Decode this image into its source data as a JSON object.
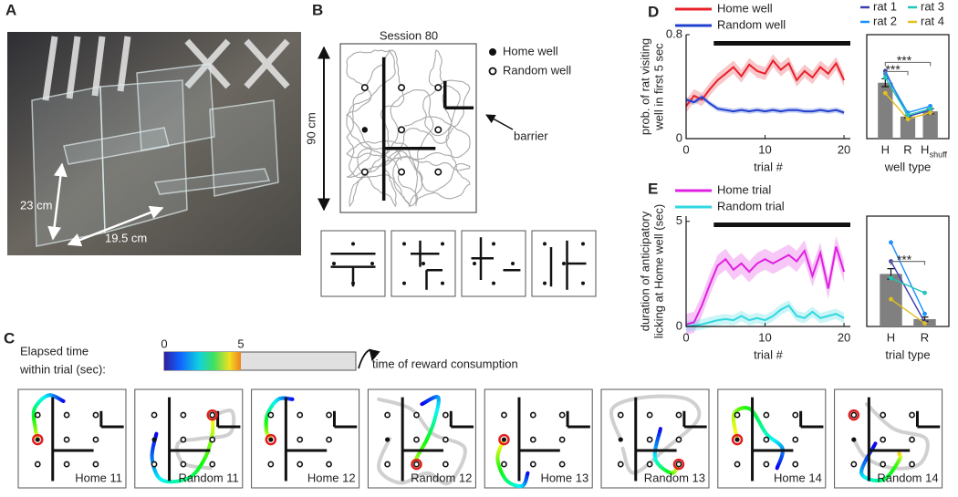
{
  "panel_labels": [
    "A",
    "B",
    "C",
    "D",
    "E"
  ],
  "panel_a": {
    "height_label": "23 cm",
    "width_label": "19.5 cm"
  },
  "panel_b": {
    "title": "Session 80",
    "legend": [
      "Home well",
      "Random well"
    ],
    "barrier_label": "barrier",
    "size_label": "90 cm"
  },
  "panel_c": {
    "colorbar_label": [
      "Elapsed time",
      "within trial (sec):"
    ],
    "colorbar_ticks": [
      0,
      5
    ],
    "colorbar_lim": [
      0,
      12.5
    ],
    "reward_label": "time of reward consumption",
    "trials": [
      "Home 11",
      "Random 11",
      "Home 12",
      "Random 12",
      "Home 13",
      "Random 13",
      "Home 14",
      "Random 14"
    ]
  },
  "chart_data": [
    {
      "type": "line",
      "xlabel": "trial #",
      "ylabel": [
        "prob. of rat visiting",
        "well in first 5 sec"
      ],
      "x": [
        0,
        1,
        2,
        3,
        4,
        5,
        6,
        7,
        8,
        9,
        10,
        11,
        12,
        13,
        14,
        15,
        16,
        17,
        18,
        19,
        20
      ],
      "series": [
        {
          "name": "Home well",
          "color": "#e8202a",
          "error": 0.05,
          "values": [
            0.25,
            0.33,
            0.3,
            0.38,
            0.45,
            0.5,
            0.55,
            0.48,
            0.57,
            0.52,
            0.5,
            0.6,
            0.53,
            0.58,
            0.45,
            0.52,
            0.47,
            0.55,
            0.5,
            0.58,
            0.45
          ]
        },
        {
          "name": "Random well",
          "color": "#2040d0",
          "error": 0.02,
          "values": [
            0.3,
            0.28,
            0.32,
            0.27,
            0.23,
            0.22,
            0.21,
            0.22,
            0.21,
            0.22,
            0.21,
            0.22,
            0.21,
            0.22,
            0.22,
            0.21,
            0.21,
            0.22,
            0.21,
            0.22,
            0.2
          ]
        }
      ],
      "xlim": [
        0,
        20.8
      ],
      "ylim": [
        0,
        0.8
      ],
      "xticks": [
        0,
        10,
        20
      ],
      "yticks": [
        0,
        0.8
      ],
      "sig_range": [
        3.5,
        20.8
      ]
    },
    {
      "type": "bar",
      "xlabel": "well type",
      "categories": [
        "H",
        "R",
        "H"
      ],
      "category_subscripts": [
        null,
        null,
        "shuff"
      ],
      "values": [
        0.43,
        0.17,
        0.21
      ],
      "errors": [
        0.03,
        0.01,
        0.02
      ],
      "color": "#808080",
      "series": [
        {
          "name": "rat 1",
          "color": "#3b3bb0",
          "values": [
            0.52,
            0.17,
            0.22
          ]
        },
        {
          "name": "rat 2",
          "color": "#1a8fff",
          "values": [
            0.5,
            0.2,
            0.25
          ]
        },
        {
          "name": "rat 3",
          "color": "#20c8b8",
          "values": [
            0.47,
            0.18,
            0.23
          ]
        },
        {
          "name": "rat 4",
          "color": "#e0c020",
          "values": [
            0.35,
            0.15,
            0.2
          ]
        }
      ],
      "ylim": [
        0,
        0.8
      ],
      "annotations": [
        "***",
        "***"
      ]
    },
    {
      "type": "line",
      "xlabel": "trial #",
      "ylabel": [
        "duration of anticipatory",
        "licking at Home well (sec)"
      ],
      "x": [
        0,
        1,
        2,
        3,
        4,
        5,
        6,
        7,
        8,
        9,
        10,
        11,
        12,
        13,
        14,
        15,
        16,
        17,
        18,
        19,
        20
      ],
      "series": [
        {
          "name": "Home trial",
          "color": "#e020e0",
          "error": 0.5,
          "values": [
            0.1,
            0.2,
            1.0,
            2.0,
            2.9,
            3.2,
            2.7,
            3.0,
            2.6,
            3.0,
            3.2,
            3.0,
            3.2,
            3.4,
            3.1,
            3.6,
            2.4,
            3.5,
            1.8,
            3.8,
            2.6
          ]
        },
        {
          "name": "Random trial",
          "color": "#30d8e0",
          "error": 0.25,
          "values": [
            0.0,
            0.05,
            0.1,
            0.2,
            0.3,
            0.35,
            0.3,
            0.5,
            0.3,
            0.4,
            0.3,
            0.5,
            0.8,
            1.0,
            0.5,
            0.4,
            0.7,
            0.4,
            0.5,
            0.6,
            0.4
          ]
        }
      ],
      "xlim": [
        0,
        20.8
      ],
      "ylim": [
        0,
        5.25
      ],
      "xticks": [
        0,
        10,
        20
      ],
      "yticks": [
        0,
        5
      ],
      "sig_range": [
        3.5,
        20.8
      ]
    },
    {
      "type": "bar",
      "xlabel": "trial type",
      "categories": [
        "H",
        "R"
      ],
      "values": [
        2.5,
        0.35
      ],
      "errors": [
        0.25,
        0.1
      ],
      "color": "#808080",
      "series": [
        {
          "color": "#3b3bb0",
          "values": [
            3.1,
            0.2
          ]
        },
        {
          "color": "#1a8fff",
          "values": [
            4.0,
            0.6
          ]
        },
        {
          "color": "#20c8b8",
          "values": [
            2.3,
            1.6
          ]
        },
        {
          "color": "#e0c020",
          "values": [
            1.3,
            0.15
          ]
        }
      ],
      "ylim": [
        0,
        5.25
      ],
      "annotations": [
        "***"
      ]
    }
  ]
}
